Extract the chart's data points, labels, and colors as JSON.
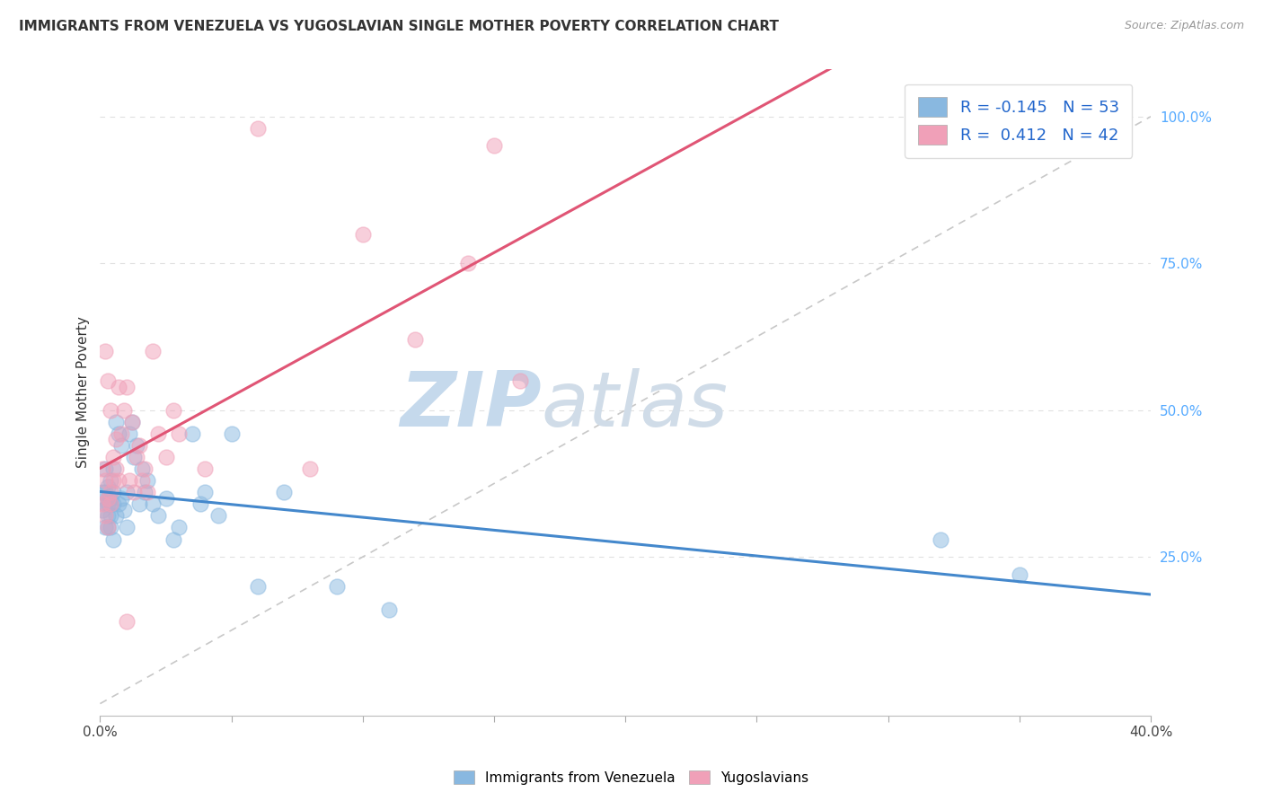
{
  "title": "IMMIGRANTS FROM VENEZUELA VS YUGOSLAVIAN SINGLE MOTHER POVERTY CORRELATION CHART",
  "source": "Source: ZipAtlas.com",
  "ylabel": "Single Mother Poverty",
  "xlim": [
    0.0,
    0.4
  ],
  "ylim": [
    -0.02,
    1.08
  ],
  "x_ticks": [
    0.0,
    0.05,
    0.1,
    0.15,
    0.2,
    0.25,
    0.3,
    0.35,
    0.4
  ],
  "x_tick_labels_show": [
    "0.0%",
    "",
    "",
    "",
    "",
    "",
    "",
    "",
    "40.0%"
  ],
  "y_ticks_right": [
    0.25,
    0.5,
    0.75,
    1.0
  ],
  "y_tick_labels_right": [
    "25.0%",
    "50.0%",
    "75.0%",
    "100.0%"
  ],
  "watermark_zip": "ZIP",
  "watermark_atlas": "atlas",
  "watermark_color_zip": "#c5d9ec",
  "watermark_color_atlas": "#c5d9ec",
  "background_color": "#ffffff",
  "grid_color": "#e0e0e0",
  "blue_color": "#89b8e0",
  "pink_color": "#f0a0b8",
  "blue_line_color": "#4488cc",
  "pink_line_color": "#e05575",
  "diag_line_color": "#c8c8c8",
  "legend_blue_label": "R = -0.145   N = 53",
  "legend_pink_label": "R =  0.412   N = 42",
  "bottom_legend_blue": "Immigrants from Venezuela",
  "bottom_legend_pink": "Yugoslavians",
  "venezuela_x": [
    0.001,
    0.001,
    0.002,
    0.002,
    0.002,
    0.002,
    0.003,
    0.003,
    0.003,
    0.003,
    0.003,
    0.004,
    0.004,
    0.004,
    0.004,
    0.004,
    0.005,
    0.005,
    0.005,
    0.005,
    0.006,
    0.006,
    0.007,
    0.007,
    0.008,
    0.008,
    0.009,
    0.01,
    0.01,
    0.011,
    0.012,
    0.013,
    0.014,
    0.015,
    0.016,
    0.017,
    0.018,
    0.02,
    0.022,
    0.025,
    0.028,
    0.03,
    0.035,
    0.038,
    0.04,
    0.045,
    0.05,
    0.06,
    0.07,
    0.09,
    0.11,
    0.32,
    0.35
  ],
  "venezuela_y": [
    0.33,
    0.36,
    0.34,
    0.3,
    0.36,
    0.4,
    0.32,
    0.35,
    0.3,
    0.37,
    0.34,
    0.3,
    0.34,
    0.38,
    0.35,
    0.32,
    0.36,
    0.28,
    0.4,
    0.34,
    0.48,
    0.32,
    0.46,
    0.34,
    0.44,
    0.35,
    0.33,
    0.36,
    0.3,
    0.46,
    0.48,
    0.42,
    0.44,
    0.34,
    0.4,
    0.36,
    0.38,
    0.34,
    0.32,
    0.35,
    0.28,
    0.3,
    0.46,
    0.34,
    0.36,
    0.32,
    0.46,
    0.2,
    0.36,
    0.2,
    0.16,
    0.28,
    0.22
  ],
  "yugoslavian_x": [
    0.001,
    0.001,
    0.002,
    0.002,
    0.002,
    0.003,
    0.003,
    0.003,
    0.004,
    0.004,
    0.004,
    0.005,
    0.005,
    0.006,
    0.006,
    0.007,
    0.007,
    0.008,
    0.009,
    0.01,
    0.01,
    0.011,
    0.012,
    0.013,
    0.014,
    0.015,
    0.016,
    0.017,
    0.018,
    0.02,
    0.022,
    0.025,
    0.028,
    0.03,
    0.04,
    0.06,
    0.08,
    0.1,
    0.12,
    0.14,
    0.15,
    0.16
  ],
  "yugoslavian_y": [
    0.4,
    0.34,
    0.38,
    0.6,
    0.32,
    0.35,
    0.55,
    0.3,
    0.5,
    0.36,
    0.34,
    0.38,
    0.42,
    0.45,
    0.4,
    0.38,
    0.54,
    0.46,
    0.5,
    0.14,
    0.54,
    0.38,
    0.48,
    0.36,
    0.42,
    0.44,
    0.38,
    0.4,
    0.36,
    0.6,
    0.46,
    0.42,
    0.5,
    0.46,
    0.4,
    0.98,
    0.4,
    0.8,
    0.62,
    0.75,
    0.95,
    0.55
  ]
}
